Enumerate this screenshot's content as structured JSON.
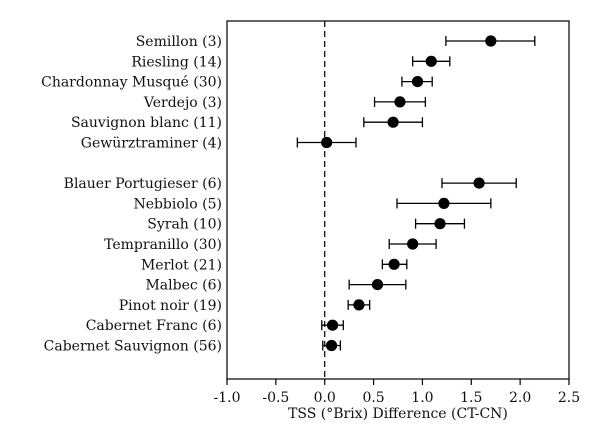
{
  "chart_data": {
    "type": "scatter",
    "subtype": "forest-plot-with-error-bars",
    "xlabel": "TSS (°Brix) Difference (CT-CN)",
    "ylabel": "",
    "xlim": [
      -1.0,
      2.5
    ],
    "xticks": [
      "-1.0",
      "-0.5",
      "0.0",
      "0.5",
      "1.0",
      "1.5",
      "2.0",
      "2.5"
    ],
    "reference_line": {
      "x": 0.0,
      "style": "dashed"
    },
    "grid": false,
    "legend": "none",
    "groups": [
      {
        "items": [
          {
            "label": "Semillon (3)",
            "value": 1.7,
            "low": 1.24,
            "high": 2.15
          },
          {
            "label": "Riesling (14)",
            "value": 1.09,
            "low": 0.9,
            "high": 1.28
          },
          {
            "label": "Chardonnay Musqué (30)",
            "value": 0.95,
            "low": 0.79,
            "high": 1.1
          },
          {
            "label": "Verdejo (3)",
            "value": 0.77,
            "low": 0.51,
            "high": 1.03
          },
          {
            "label": "Sauvignon blanc (11)",
            "value": 0.7,
            "low": 0.4,
            "high": 1.0
          },
          {
            "label": "Gewürztraminer (4)",
            "value": 0.02,
            "low": -0.28,
            "high": 0.32
          }
        ]
      },
      {
        "items": [
          {
            "label": "Blauer Portugieser (6)",
            "value": 1.58,
            "low": 1.2,
            "high": 1.96
          },
          {
            "label": "Nebbiolo (5)",
            "value": 1.22,
            "low": 0.74,
            "high": 1.7
          },
          {
            "label": "Syrah (10)",
            "value": 1.18,
            "low": 0.93,
            "high": 1.43
          },
          {
            "label": "Tempranillo (30)",
            "value": 0.9,
            "low": 0.66,
            "high": 1.14
          },
          {
            "label": "Merlot (21)",
            "value": 0.71,
            "low": 0.59,
            "high": 0.84
          },
          {
            "label": "Malbec (6)",
            "value": 0.54,
            "low": 0.25,
            "high": 0.83
          },
          {
            "label": "Pinot noir (19)",
            "value": 0.35,
            "low": 0.24,
            "high": 0.46
          },
          {
            "label": "Cabernet Franc (6)",
            "value": 0.08,
            "low": -0.03,
            "high": 0.19
          },
          {
            "label": "Cabernet Sauvignon (56)",
            "value": 0.07,
            "low": -0.02,
            "high": 0.16
          }
        ]
      }
    ],
    "colors": {
      "marker": "#000000",
      "line": "#000000",
      "axis": "#000000"
    }
  }
}
